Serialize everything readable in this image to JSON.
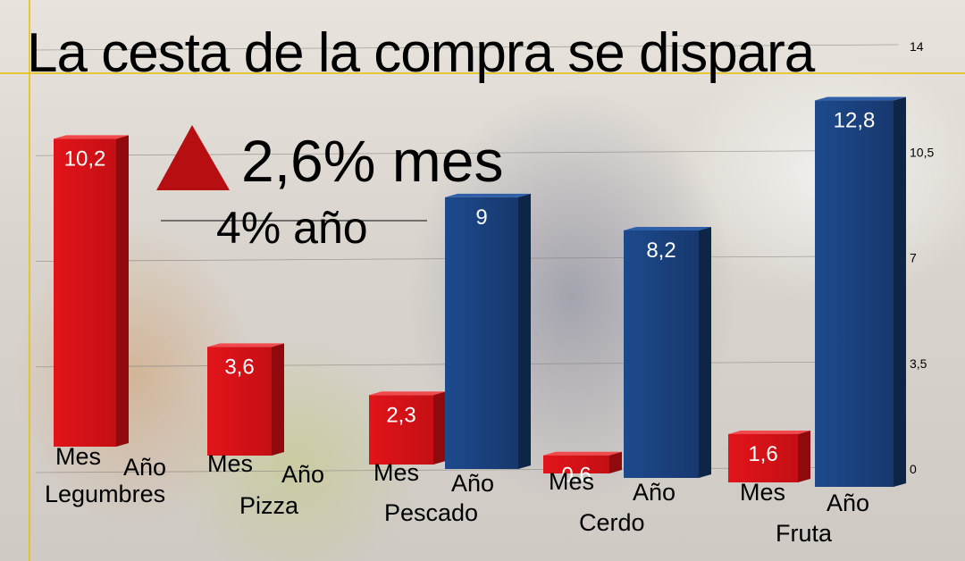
{
  "chart_data": {
    "type": "bar",
    "title": "La cesta de la compra se dispara",
    "highlight": {
      "month_text": "2,6% mes",
      "year_text": "4% año",
      "indicator": "up-triangle-icon"
    },
    "ylim": [
      0,
      14
    ],
    "yticks": [
      "0",
      "3,5",
      "7",
      "10,5",
      "14"
    ],
    "categories": [
      "Legumbres",
      "Pizza",
      "Pescado",
      "Cerdo",
      "Fruta"
    ],
    "series": [
      {
        "name": "Mes",
        "color": "#d9161a",
        "values": [
          10.2,
          3.6,
          2.3,
          0.6,
          1.6
        ],
        "labels": [
          "10,2",
          "3,6",
          "2,3",
          "0,6",
          "1,6"
        ]
      },
      {
        "name": "Año",
        "color": "#1a3f7a",
        "values": [
          null,
          null,
          9,
          8.2,
          12.8
        ],
        "labels": [
          "",
          "",
          "9",
          "8,2",
          "12,8"
        ]
      }
    ],
    "grid": true
  }
}
